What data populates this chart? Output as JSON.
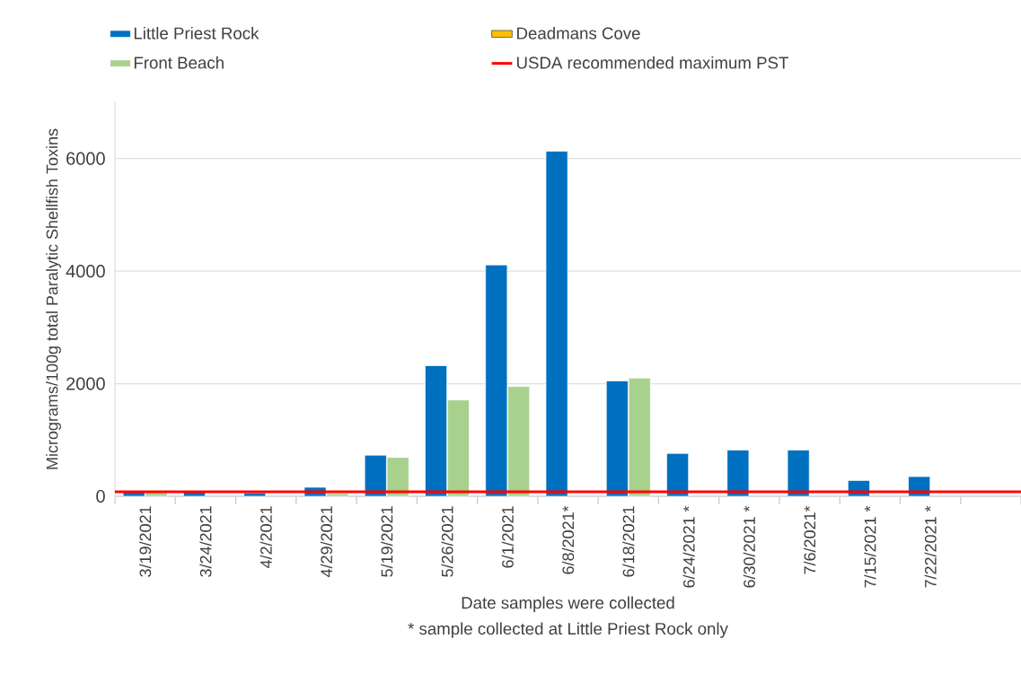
{
  "chart_data": {
    "type": "bar",
    "categories": [
      "3/19/2021",
      "3/24/2021",
      "4/2/2021",
      "4/29/2021",
      "5/19/2021",
      "5/26/2021",
      "6/1/2021",
      "6/8/2021*",
      "6/18/2021",
      "6/24/2021 *",
      "6/30/2021 *",
      "7/6/2021*",
      "7/15/2021 *",
      "7/22/2021 *",
      null
    ],
    "series": [
      {
        "name": "Little Priest Rock",
        "color": "#0070c0",
        "values": [
          90,
          90,
          60,
          160,
          730,
          2320,
          4110,
          6130,
          2050,
          760,
          820,
          820,
          280,
          350,
          null
        ]
      },
      {
        "name": "Deadmans Cove",
        "color": "#ffc000",
        "values": [
          null,
          null,
          null,
          null,
          null,
          null,
          null,
          null,
          null,
          null,
          null,
          null,
          null,
          null,
          null
        ]
      },
      {
        "name": "Front Beach",
        "color": "#a9d18e",
        "values": [
          70,
          null,
          null,
          50,
          690,
          1710,
          1950,
          null,
          2100,
          null,
          null,
          null,
          null,
          null,
          null
        ]
      }
    ],
    "ref_lines": [
      {
        "axis": "y",
        "value": 80,
        "label": "USDA recommended maximum PST",
        "color": "#ff0000"
      }
    ],
    "xlabel": "Date samples were collected",
    "ylabel": "Micrograms/100g total Paralytic Shellfish Toxins",
    "annotations": [
      "* sample collected at Little Priest Rock only"
    ],
    "ylim": [
      0,
      7000
    ],
    "yticks": [
      0,
      2000,
      4000,
      6000
    ],
    "grid": "y",
    "legend": "top"
  }
}
